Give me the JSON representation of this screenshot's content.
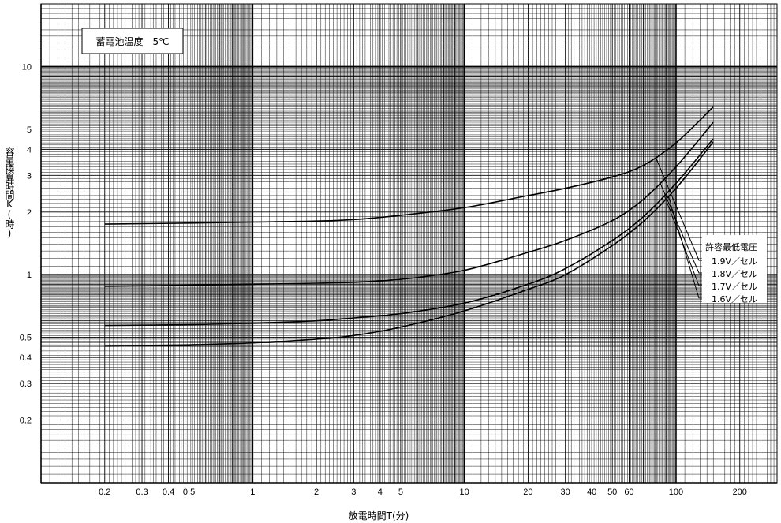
{
  "chart_data": {
    "type": "line",
    "title": "蓄電池温度　5℃",
    "xlabel": "放電時間T(分)",
    "ylabel": "容量換算時間K(時)",
    "x_scale": "log",
    "y_scale": "log",
    "xlim": [
      0.1,
      300
    ],
    "ylim": [
      0.1,
      20
    ],
    "grid": true,
    "x_ticks": [
      {
        "v": 0.2,
        "t": "0.2"
      },
      {
        "v": 0.3,
        "t": "0.3"
      },
      {
        "v": 0.4,
        "t": "0.4"
      },
      {
        "v": 0.5,
        "t": "0.5"
      },
      {
        "v": 1,
        "t": "1"
      },
      {
        "v": 2,
        "t": "2"
      },
      {
        "v": 3,
        "t": "3"
      },
      {
        "v": 4,
        "t": "4"
      },
      {
        "v": 5,
        "t": "5"
      },
      {
        "v": 10,
        "t": "10"
      },
      {
        "v": 20,
        "t": "20"
      },
      {
        "v": 30,
        "t": "30"
      },
      {
        "v": 40,
        "t": "40"
      },
      {
        "v": 50,
        "t": "50"
      },
      {
        "v": 60,
        "t": "60"
      },
      {
        "v": 100,
        "t": "100"
      },
      {
        "v": 200,
        "t": "200"
      }
    ],
    "y_ticks": [
      {
        "v": 0.2,
        "t": "0.2"
      },
      {
        "v": 0.3,
        "t": "0.3"
      },
      {
        "v": 0.4,
        "t": "0.4"
      },
      {
        "v": 0.5,
        "t": "0.5"
      },
      {
        "v": 1,
        "t": "1"
      },
      {
        "v": 2,
        "t": "2"
      },
      {
        "v": 3,
        "t": "3"
      },
      {
        "v": 4,
        "t": "4"
      },
      {
        "v": 5,
        "t": "5"
      },
      {
        "v": 10,
        "t": "10"
      }
    ],
    "legend_title": "許容最低電圧",
    "legend_position": "right",
    "series": [
      {
        "name": "1.9V／セル",
        "x": [
          0.2,
          0.5,
          1,
          2,
          3,
          5,
          10,
          20,
          30,
          50,
          70,
          100,
          150
        ],
        "y": [
          1.75,
          1.77,
          1.79,
          1.81,
          1.84,
          1.93,
          2.1,
          2.4,
          2.6,
          2.95,
          3.35,
          4.3,
          6.4
        ]
      },
      {
        "name": "1.8V／セル",
        "x": [
          0.2,
          0.5,
          1,
          2,
          3,
          5,
          10,
          20,
          30,
          50,
          70,
          100,
          150
        ],
        "y": [
          0.88,
          0.89,
          0.9,
          0.91,
          0.92,
          0.95,
          1.05,
          1.28,
          1.46,
          1.82,
          2.3,
          3.3,
          5.4
        ]
      },
      {
        "name": "1.7V／セル",
        "x": [
          0.2,
          0.5,
          1,
          2,
          3,
          5,
          10,
          20,
          30,
          50,
          70,
          100,
          150
        ],
        "y": [
          0.57,
          0.575,
          0.585,
          0.6,
          0.62,
          0.65,
          0.73,
          0.9,
          1.07,
          1.46,
          1.9,
          2.75,
          4.5
        ]
      },
      {
        "name": "1.6V／セル",
        "x": [
          0.2,
          0.5,
          1,
          2,
          3,
          5,
          10,
          20,
          30,
          50,
          70,
          100,
          150
        ],
        "y": [
          0.455,
          0.46,
          0.47,
          0.49,
          0.51,
          0.56,
          0.67,
          0.85,
          1.0,
          1.38,
          1.8,
          2.6,
          4.35
        ]
      }
    ]
  }
}
